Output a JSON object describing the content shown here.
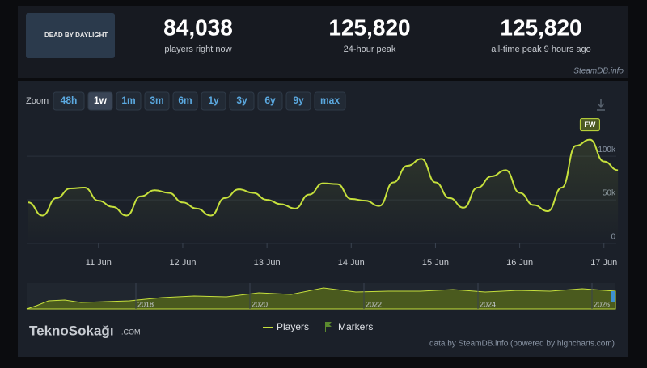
{
  "header": {
    "game_logo": "DEAD BY DAYLIGHT",
    "stats": [
      {
        "value": "84,038",
        "label": "players right now"
      },
      {
        "value": "125,820",
        "label": "24-hour peak"
      },
      {
        "value": "125,820",
        "label": "all-time peak 9 hours ago"
      }
    ],
    "source": "SteamDB.info"
  },
  "zoom": {
    "label": "Zoom",
    "options": [
      "48h",
      "1w",
      "1m",
      "3m",
      "6m",
      "1y",
      "3y",
      "6y",
      "9y",
      "max"
    ],
    "selected_index": 1
  },
  "chart_data": {
    "type": "line",
    "categories": [
      null,
      null,
      null,
      null,
      null,
      "11 Jun",
      null,
      null,
      null,
      null,
      null,
      "12 Jun",
      null,
      null,
      null,
      null,
      null,
      "13 Jun",
      null,
      null,
      null,
      null,
      null,
      "14 Jun",
      null,
      null,
      null,
      null,
      null,
      "15 Jun",
      null,
      null,
      null,
      null,
      null,
      "16 Jun",
      null,
      null,
      null,
      null,
      null,
      "17 Jun",
      null
    ],
    "series": [
      {
        "name": "Players",
        "color": "#c6e03c",
        "values": [
          47000,
          32000,
          52000,
          63000,
          64000,
          49000,
          42000,
          32000,
          54000,
          61000,
          58000,
          47000,
          40000,
          32000,
          52000,
          62000,
          58000,
          50000,
          45000,
          40000,
          56000,
          69000,
          68000,
          51000,
          49000,
          43000,
          70000,
          89000,
          97000,
          70000,
          52000,
          41000,
          64000,
          77000,
          84000,
          58000,
          44000,
          37000,
          64000,
          112000,
          119000,
          94000,
          84000
        ]
      }
    ],
    "ylim": [
      0,
      140000
    ],
    "yticks": [
      0,
      {
        "value": 50000,
        "label": "50k"
      },
      {
        "value": 100000,
        "label": "100k"
      }
    ],
    "grid": true,
    "annotation": "FW",
    "markers_label": "Markers"
  },
  "navigator": {
    "labels": [
      "2018",
      "2020",
      "2022",
      "2024",
      "2026"
    ]
  },
  "watermark": {
    "name": "TeknoSokağı",
    "suffix": ".COM"
  },
  "footer": "data by SteamDB.info (powered by highcharts.com)"
}
